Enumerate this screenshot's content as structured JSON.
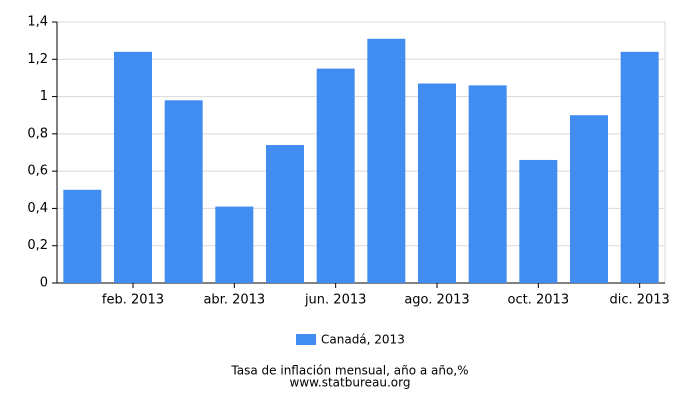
{
  "chart_data": {
    "type": "bar",
    "title": "Tasa de inflación mensual, año a año,%",
    "source": "www.statbureau.org",
    "categories": [
      null,
      "feb. 2013",
      null,
      "abr. 2013",
      null,
      "jun. 2013",
      null,
      "ago. 2013",
      null,
      "oct. 2013",
      null,
      "dic. 2013"
    ],
    "series": [
      {
        "name": "Canadá, 2013",
        "color": "#418cf0",
        "values": [
          0.5,
          1.24,
          0.98,
          0.41,
          0.74,
          1.15,
          1.31,
          1.07,
          1.06,
          0.66,
          0.9,
          1.24
        ]
      }
    ],
    "ylim": [
      0,
      1.4
    ],
    "yticks": [
      0,
      {
        "value": 0.2,
        "label": "0,2"
      },
      {
        "value": 0.4,
        "label": "0,4"
      },
      {
        "value": 0.6,
        "label": "0,6"
      },
      {
        "value": 0.8,
        "label": "0,8"
      },
      1,
      {
        "value": 1.2,
        "label": "1,2"
      },
      {
        "value": 1.4,
        "label": "1,4"
      }
    ],
    "grid": true
  }
}
